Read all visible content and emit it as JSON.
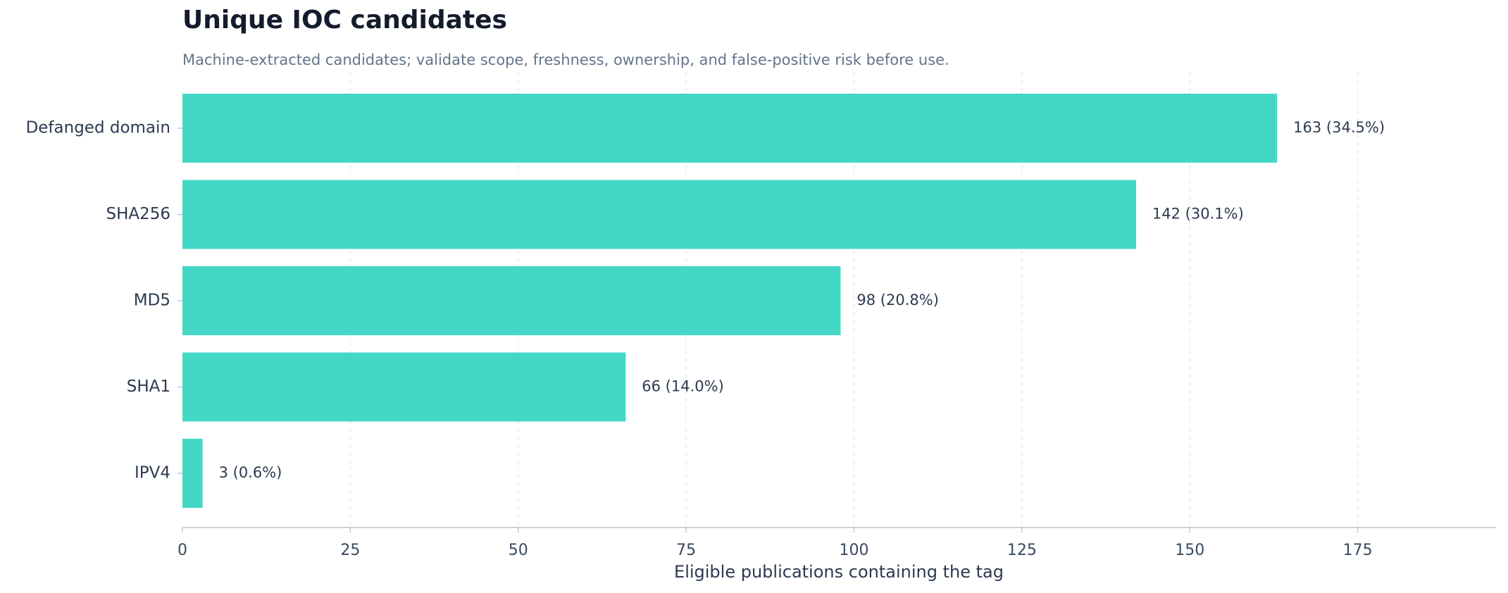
{
  "chart_data": {
    "type": "bar",
    "orientation": "horizontal",
    "title": "Unique IOC candidates",
    "subtitle": "Machine-extracted candidates; validate scope, freshness, ownership, and false-positive risk before use.",
    "xlabel": "Eligible publications containing the tag",
    "ylabel": "",
    "categories": [
      "Defanged domain",
      "SHA256",
      "MD5",
      "SHA1",
      "IPV4"
    ],
    "values": [
      163,
      142,
      98,
      66,
      3
    ],
    "data_labels": [
      "163  (34.5%)",
      "142  (30.1%)",
      "98  (20.8%)",
      "66  (14.0%)",
      "3  (0.6%)"
    ],
    "xlim": [
      0,
      195.6
    ],
    "xticks": [
      0,
      25,
      50,
      75,
      100,
      125,
      150,
      175
    ],
    "xtick_labels": [
      "0",
      "25",
      "50",
      "75",
      "100",
      "125",
      "150",
      "175"
    ],
    "grid": "vertical dashed",
    "legend": "none",
    "bar_color": "#43d8c6",
    "text_color": "#2c3a50",
    "grid_color": "#e3e6ea",
    "axis_color": "#b9c3d0"
  }
}
